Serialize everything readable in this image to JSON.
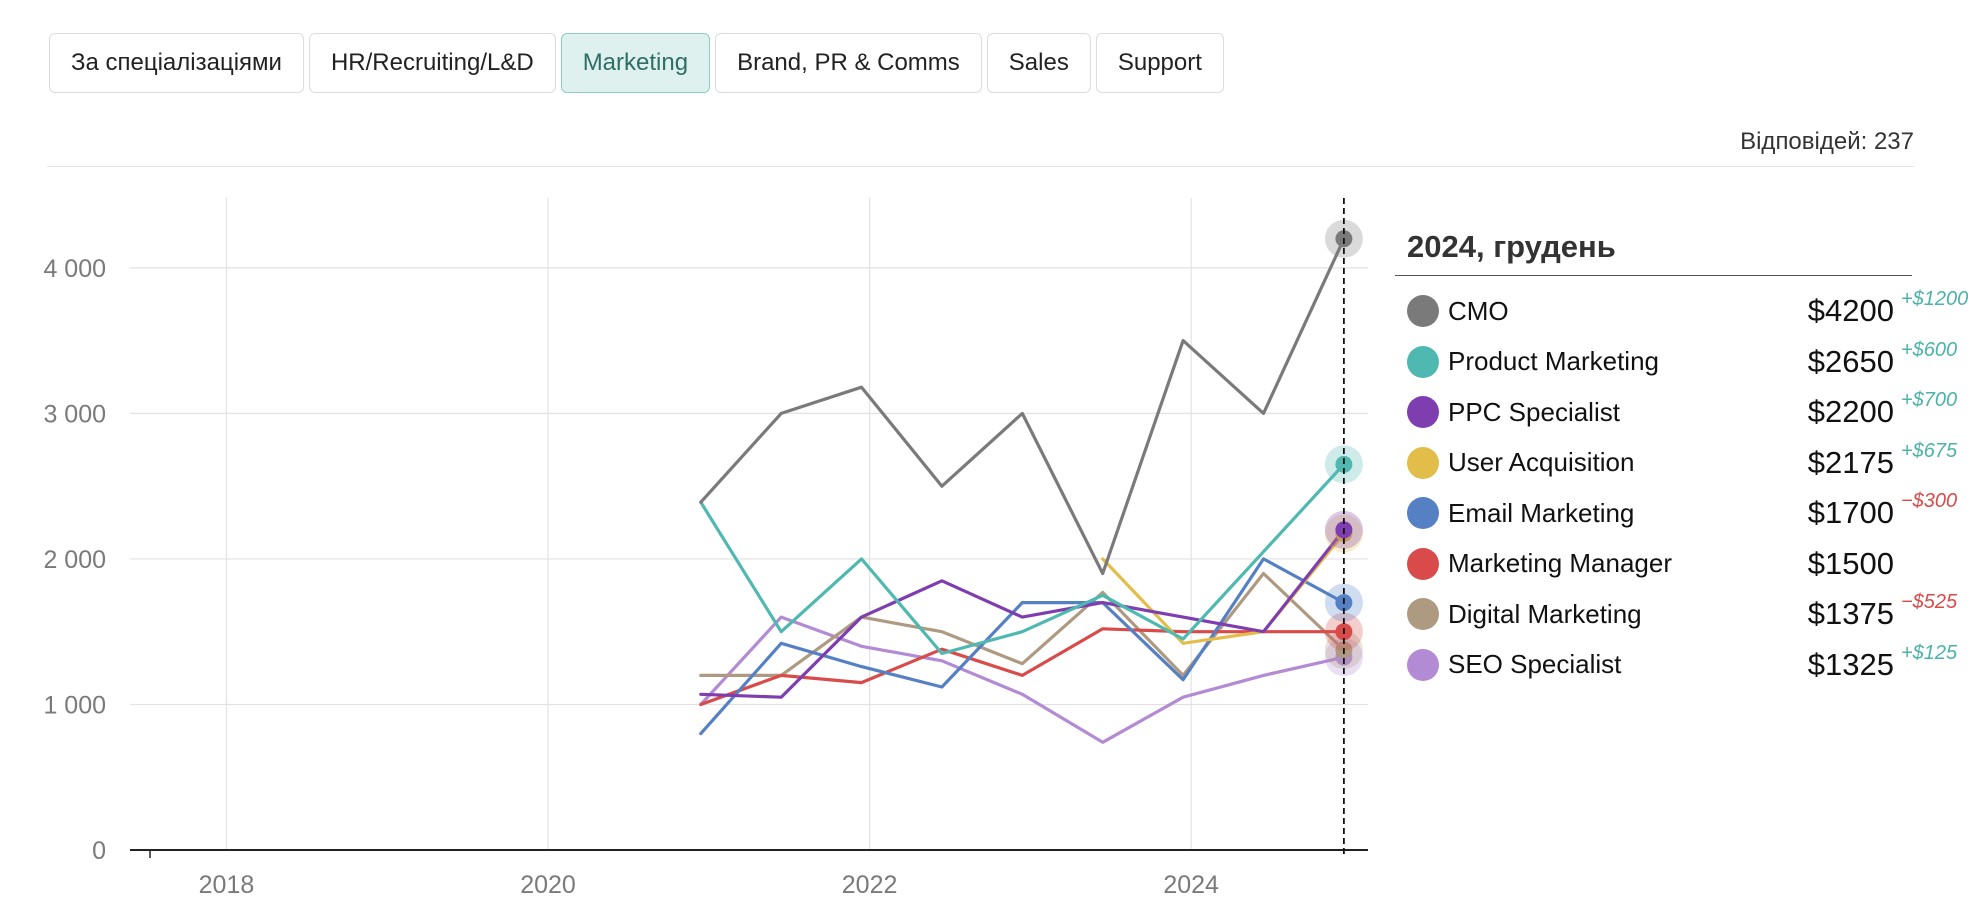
{
  "tabs": [
    {
      "label": "За спеціалізаціями",
      "active": false
    },
    {
      "label": "HR/Recruiting/L&D",
      "active": false
    },
    {
      "label": "Marketing",
      "active": true
    },
    {
      "label": "Brand, PR & Comms",
      "active": false
    },
    {
      "label": "Sales",
      "active": false
    },
    {
      "label": "Support",
      "active": false
    }
  ],
  "responses_label": "Відповідей: 237",
  "legend": {
    "title": "2024, грудень",
    "rows": [
      {
        "name": "CMO",
        "value": "$4200",
        "delta": "+$1200",
        "color": "#7a7a7a",
        "delta_color": "#4bb3aa"
      },
      {
        "name": "Product Marketing",
        "value": "$2650",
        "delta": "+$600",
        "color": "#4fb8b0",
        "delta_color": "#4bb3aa"
      },
      {
        "name": "PPC Specialist",
        "value": "$2200",
        "delta": "+$700",
        "color": "#7e3eb0",
        "delta_color": "#4bb3aa"
      },
      {
        "name": "User Acquisition",
        "value": "$2175",
        "delta": "+$675",
        "color": "#e3bd4a",
        "delta_color": "#4bb3aa"
      },
      {
        "name": "Email Marketing",
        "value": "$1700",
        "delta": "−$300",
        "color": "#5580c4",
        "delta_color": "#d94b4b"
      },
      {
        "name": "Marketing Manager",
        "value": "$1500",
        "delta": "",
        "color": "#d94b4b",
        "delta_color": "#d94b4b"
      },
      {
        "name": "Digital Marketing",
        "value": "$1375",
        "delta": "−$525",
        "color": "#ae9a80",
        "delta_color": "#d94b4b"
      },
      {
        "name": "SEO Specialist",
        "value": "$1325",
        "delta": "+$125",
        "color": "#b38ad4",
        "delta_color": "#4bb3aa"
      }
    ]
  },
  "chart_data": {
    "type": "line",
    "title": "",
    "xlabel": "",
    "ylabel": "",
    "x_ticks": [
      2018,
      2020,
      2022,
      2024
    ],
    "y_ticks": [
      0,
      1000,
      2000,
      3000,
      4000
    ],
    "y_tick_labels": [
      "0",
      "1 000",
      "2 000",
      "3 000",
      "4 000"
    ],
    "xlim": [
      2017.4,
      2025.1
    ],
    "ylim": [
      0,
      4480
    ],
    "grid": true,
    "highlight_x": 2024.95,
    "series": [
      {
        "name": "CMO",
        "color": "#7a7a7a",
        "x": [
          2020.95,
          2021.45,
          2021.95,
          2022.45,
          2022.95,
          2023.45,
          2023.95,
          2024.45,
          2024.95
        ],
        "values": [
          2390,
          3000,
          3180,
          2500,
          3000,
          1900,
          3500,
          3000,
          4200
        ]
      },
      {
        "name": "Product Marketing",
        "color": "#4fb8b0",
        "x": [
          2020.95,
          2021.45,
          2021.95,
          2022.45,
          2022.95,
          2023.45,
          2023.95,
          2024.45,
          2024.95
        ],
        "values": [
          2390,
          1500,
          2000,
          1350,
          1500,
          1750,
          1450,
          2050,
          2650
        ]
      },
      {
        "name": "PPC Specialist",
        "color": "#7e3eb0",
        "x": [
          2020.95,
          2021.45,
          2021.95,
          2022.45,
          2022.95,
          2023.45,
          2023.95,
          2024.45,
          2024.95
        ],
        "values": [
          1070,
          1050,
          1600,
          1850,
          1600,
          1700,
          1600,
          1500,
          2200
        ]
      },
      {
        "name": "User Acquisition",
        "color": "#e3bd4a",
        "x": [
          2023.45,
          2023.95,
          2024.45,
          2024.95
        ],
        "values": [
          2000,
          1420,
          1500,
          2175
        ]
      },
      {
        "name": "Email Marketing",
        "color": "#5580c4",
        "x": [
          2020.95,
          2021.45,
          2021.95,
          2022.45,
          2022.95,
          2023.45,
          2023.95,
          2024.45,
          2024.95
        ],
        "values": [
          800,
          1420,
          1260,
          1120,
          1700,
          1700,
          1170,
          2000,
          1700
        ]
      },
      {
        "name": "Marketing Manager",
        "color": "#d94b4b",
        "x": [
          2020.95,
          2021.45,
          2021.95,
          2022.45,
          2022.95,
          2023.45,
          2023.95,
          2024.45,
          2024.95
        ],
        "values": [
          1000,
          1200,
          1150,
          1380,
          1200,
          1520,
          1500,
          1500,
          1500
        ]
      },
      {
        "name": "Digital Marketing",
        "color": "#ae9a80",
        "x": [
          2020.95,
          2021.45,
          2021.95,
          2022.45,
          2022.95,
          2023.45,
          2023.95,
          2024.45,
          2024.95
        ],
        "values": [
          1200,
          1200,
          1600,
          1500,
          1280,
          1770,
          1200,
          1900,
          1375
        ]
      },
      {
        "name": "SEO Specialist",
        "color": "#b38ad4",
        "x": [
          2020.95,
          2021.45,
          2021.95,
          2022.45,
          2022.95,
          2023.45,
          2023.95,
          2024.45,
          2024.95
        ],
        "values": [
          1000,
          1600,
          1400,
          1300,
          1070,
          740,
          1050,
          1200,
          1325
        ]
      }
    ]
  }
}
